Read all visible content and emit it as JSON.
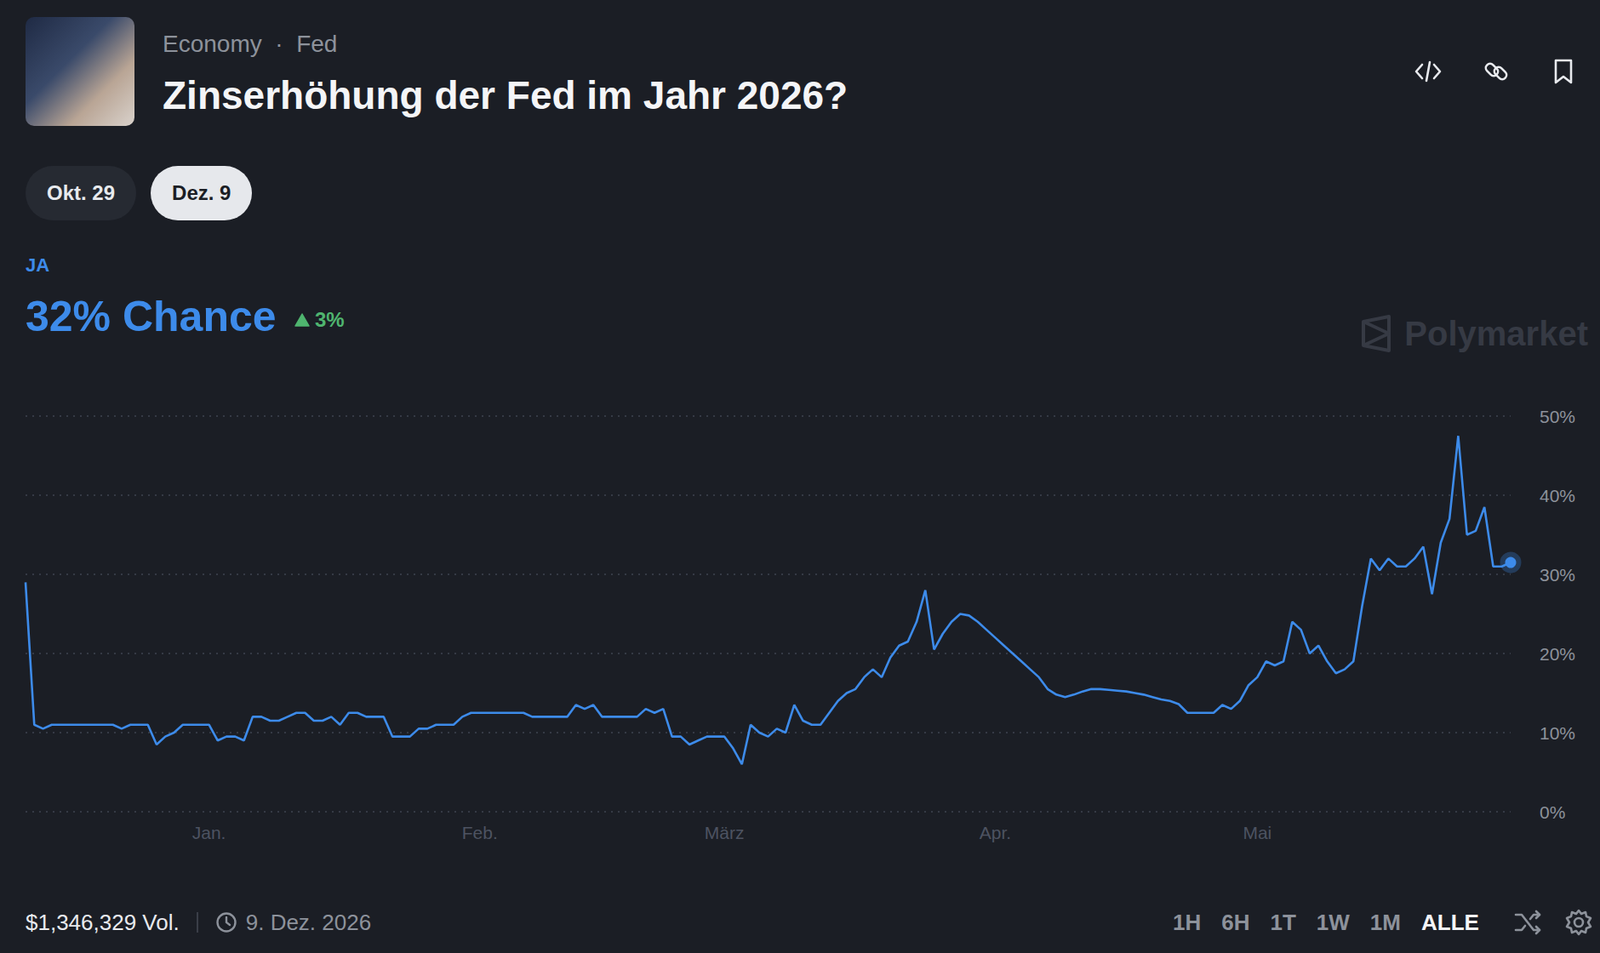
{
  "header": {
    "breadcrumb": "Economy  ·  Fed",
    "title": "Zinserhöhung der Fed im Jahr 2026?",
    "date_tabs": [
      "Okt. 29",
      "Dez. 9"
    ],
    "selected_tab": "Dez. 9",
    "outcome": "JA",
    "chance": "32% Chance",
    "change": "3%",
    "watermark": "Polymarket"
  },
  "chart_data": {
    "type": "line",
    "color": "#3d8bea",
    "categories": [
      null,
      null,
      null,
      null,
      null,
      null,
      null,
      null,
      null,
      null,
      null,
      null,
      null,
      null,
      null,
      null,
      null,
      null,
      null,
      null,
      null,
      "Jan.",
      null,
      null,
      null,
      null,
      null,
      null,
      null,
      null,
      null,
      null,
      null,
      null,
      null,
      null,
      null,
      null,
      null,
      null,
      null,
      null,
      null,
      null,
      null,
      null,
      null,
      null,
      null,
      null,
      null,
      null,
      "Feb.",
      null,
      null,
      null,
      null,
      null,
      null,
      null,
      null,
      null,
      null,
      null,
      null,
      null,
      null,
      null,
      null,
      null,
      null,
      null,
      null,
      null,
      null,
      null,
      null,
      null,
      null,
      null,
      "März",
      null,
      null,
      null,
      null,
      null,
      null,
      null,
      null,
      null,
      null,
      null,
      null,
      null,
      null,
      null,
      null,
      null,
      null,
      null,
      null,
      null,
      null,
      null,
      null,
      null,
      null,
      null,
      null,
      null,
      null,
      "Apr.",
      null,
      null,
      null,
      null,
      null,
      null,
      null,
      null,
      null,
      null,
      null,
      null,
      null,
      null,
      null,
      null,
      null,
      null,
      null,
      null,
      null,
      null,
      null,
      null,
      null,
      null,
      null,
      null,
      null,
      "Mai",
      null,
      null,
      null,
      null,
      null,
      null,
      null,
      null,
      null,
      null,
      null,
      null,
      null,
      null,
      null,
      null,
      null,
      null,
      null,
      null,
      null,
      null,
      null,
      null,
      null,
      null,
      null,
      null,
      null
    ],
    "values": [
      29,
      11,
      10.5,
      11,
      11,
      11,
      11,
      11,
      11,
      11,
      11,
      10.5,
      11,
      11,
      11,
      8.5,
      9.5,
      10,
      11,
      11,
      11,
      11,
      9,
      9.5,
      9.5,
      9,
      12,
      12,
      11.5,
      11.5,
      12,
      12.5,
      12.5,
      11.5,
      11.5,
      12,
      11,
      12.5,
      12.5,
      12,
      12,
      12,
      9.5,
      9.5,
      9.5,
      10.5,
      10.5,
      11,
      11,
      11,
      12,
      12.5,
      12.5,
      12.5,
      12.5,
      12.5,
      12.5,
      12.5,
      12,
      12,
      12,
      12,
      12,
      13.5,
      13,
      13.5,
      12,
      12,
      12,
      12,
      12,
      13,
      12.5,
      13,
      9.5,
      9.5,
      8.5,
      9,
      9.5,
      9.5,
      9.5,
      8,
      6,
      11,
      10,
      9.5,
      10.5,
      10,
      13.5,
      11.5,
      11,
      11,
      12.5,
      14,
      15,
      15.5,
      17,
      18,
      17,
      19.5,
      21,
      21.5,
      24,
      28,
      20.5,
      22.5,
      24,
      25,
      24.8,
      24,
      23,
      22,
      21,
      20,
      19,
      18,
      17,
      15.5,
      14.8,
      14.5,
      14.8,
      15.2,
      15.5,
      15.5,
      15.4,
      15.3,
      15.2,
      15,
      14.8,
      14.5,
      14.2,
      14,
      13.6,
      12.5,
      12.5,
      12.5,
      12.5,
      13.5,
      13,
      14,
      16,
      17,
      19,
      18.5,
      19,
      24,
      23,
      20,
      21,
      19,
      17.5,
      18,
      19,
      26,
      32,
      30.5,
      32,
      31,
      31,
      32,
      33.5,
      27.5,
      34,
      37,
      47.5,
      35,
      35.5,
      38.5,
      31,
      31,
      31.5
    ],
    "ylim": [
      0,
      50
    ],
    "yticks": [
      {
        "value": 0,
        "label": "0%"
      },
      {
        "value": 10,
        "label": "10%"
      },
      {
        "value": 20,
        "label": "20%"
      },
      {
        "value": 30,
        "label": "30%"
      },
      {
        "value": 40,
        "label": "40%"
      },
      {
        "value": 50,
        "label": "50%"
      }
    ],
    "grid": true
  },
  "footer": {
    "volume": "$1,346,329 Vol.",
    "end_date": "9. Dez. 2026",
    "ranges": [
      "1H",
      "6H",
      "1T",
      "1W",
      "1M",
      "ALLE"
    ],
    "selected_range": "ALLE"
  }
}
